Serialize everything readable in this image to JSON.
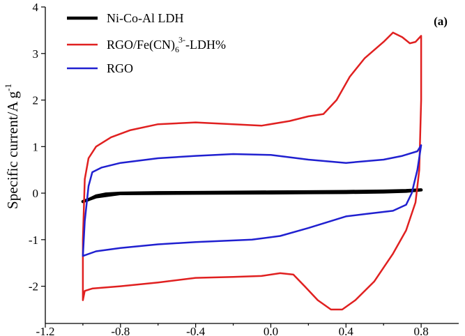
{
  "chart_data": {
    "type": "line",
    "title": "",
    "panel_label": "(a)",
    "xlabel": "",
    "ylabel": "Specific current/A g",
    "ylabel_superscript": "-1",
    "xlim": [
      -1.2,
      1.0
    ],
    "ylim": [
      -2.8,
      4.0
    ],
    "x_ticks": [
      -1.2,
      -0.8,
      -0.4,
      0.0,
      0.4,
      0.8
    ],
    "x_tick_labels": [
      "-1.2",
      "-0.8",
      "-0.4",
      "0.0",
      "0.4",
      "0.8"
    ],
    "y_ticks": [
      -2,
      -1,
      0,
      1,
      2,
      3,
      4
    ],
    "y_tick_labels": [
      "-2",
      "-1",
      "0",
      "1",
      "2",
      "3",
      "4"
    ],
    "grid": false,
    "legend_position": "top-left",
    "series": [
      {
        "name": "Ni-Co-Al LDH",
        "color": "#000000",
        "width": 4.5,
        "points": [
          [
            -1.0,
            -0.18
          ],
          [
            -0.97,
            -0.14
          ],
          [
            -0.93,
            -0.06
          ],
          [
            -0.88,
            -0.02
          ],
          [
            -0.8,
            0.0
          ],
          [
            -0.6,
            0.01
          ],
          [
            -0.4,
            0.015
          ],
          [
            -0.2,
            0.02
          ],
          [
            0.0,
            0.025
          ],
          [
            0.2,
            0.03
          ],
          [
            0.4,
            0.035
          ],
          [
            0.6,
            0.045
          ],
          [
            0.72,
            0.055
          ],
          [
            0.8,
            0.07
          ],
          [
            0.72,
            0.04
          ],
          [
            0.6,
            0.025
          ],
          [
            0.4,
            0.015
          ],
          [
            0.2,
            0.01
          ],
          [
            0.0,
            0.005
          ],
          [
            -0.4,
            0.0
          ],
          [
            -0.8,
            -0.01
          ],
          [
            -0.93,
            -0.08
          ],
          [
            -1.0,
            -0.18
          ]
        ]
      },
      {
        "name": "RGO/Fe(CN)6 3- -LDH%",
        "legend_main": "RGO/Fe(CN)",
        "legend_sub": "6",
        "legend_sup": "3-",
        "legend_tail": "-LDH%",
        "color": "#e02020",
        "width": 2.5,
        "points": [
          [
            -1.0,
            -2.3
          ],
          [
            -1.0,
            -1.0
          ],
          [
            -0.99,
            0.3
          ],
          [
            -0.97,
            0.75
          ],
          [
            -0.93,
            1.0
          ],
          [
            -0.85,
            1.2
          ],
          [
            -0.75,
            1.35
          ],
          [
            -0.6,
            1.48
          ],
          [
            -0.4,
            1.52
          ],
          [
            -0.2,
            1.48
          ],
          [
            -0.05,
            1.45
          ],
          [
            0.1,
            1.55
          ],
          [
            0.2,
            1.65
          ],
          [
            0.28,
            1.7
          ],
          [
            0.35,
            2.0
          ],
          [
            0.42,
            2.5
          ],
          [
            0.5,
            2.9
          ],
          [
            0.6,
            3.25
          ],
          [
            0.65,
            3.45
          ],
          [
            0.7,
            3.35
          ],
          [
            0.74,
            3.22
          ],
          [
            0.77,
            3.25
          ],
          [
            0.8,
            3.38
          ],
          [
            0.8,
            2.0
          ],
          [
            0.79,
            0.5
          ],
          [
            0.77,
            -0.2
          ],
          [
            0.72,
            -0.8
          ],
          [
            0.65,
            -1.3
          ],
          [
            0.55,
            -1.9
          ],
          [
            0.45,
            -2.3
          ],
          [
            0.38,
            -2.5
          ],
          [
            0.32,
            -2.5
          ],
          [
            0.25,
            -2.3
          ],
          [
            0.18,
            -2.0
          ],
          [
            0.12,
            -1.75
          ],
          [
            0.05,
            -1.72
          ],
          [
            -0.05,
            -1.78
          ],
          [
            -0.2,
            -1.8
          ],
          [
            -0.4,
            -1.82
          ],
          [
            -0.6,
            -1.92
          ],
          [
            -0.8,
            -2.0
          ],
          [
            -0.95,
            -2.05
          ],
          [
            -0.99,
            -2.1
          ],
          [
            -1.0,
            -2.3
          ]
        ]
      },
      {
        "name": "RGO",
        "color": "#2020d0",
        "width": 2.5,
        "points": [
          [
            -1.0,
            -1.35
          ],
          [
            -0.99,
            -0.6
          ],
          [
            -0.97,
            0.15
          ],
          [
            -0.95,
            0.45
          ],
          [
            -0.9,
            0.55
          ],
          [
            -0.8,
            0.65
          ],
          [
            -0.6,
            0.75
          ],
          [
            -0.4,
            0.8
          ],
          [
            -0.2,
            0.84
          ],
          [
            0.0,
            0.82
          ],
          [
            0.2,
            0.72
          ],
          [
            0.4,
            0.65
          ],
          [
            0.6,
            0.72
          ],
          [
            0.7,
            0.8
          ],
          [
            0.78,
            0.9
          ],
          [
            0.8,
            1.03
          ],
          [
            0.78,
            0.5
          ],
          [
            0.75,
            0.0
          ],
          [
            0.72,
            -0.25
          ],
          [
            0.65,
            -0.38
          ],
          [
            0.5,
            -0.45
          ],
          [
            0.4,
            -0.5
          ],
          [
            0.2,
            -0.75
          ],
          [
            0.05,
            -0.92
          ],
          [
            -0.1,
            -1.0
          ],
          [
            -0.4,
            -1.05
          ],
          [
            -0.6,
            -1.1
          ],
          [
            -0.8,
            -1.18
          ],
          [
            -0.93,
            -1.25
          ],
          [
            -1.0,
            -1.35
          ]
        ]
      }
    ]
  }
}
